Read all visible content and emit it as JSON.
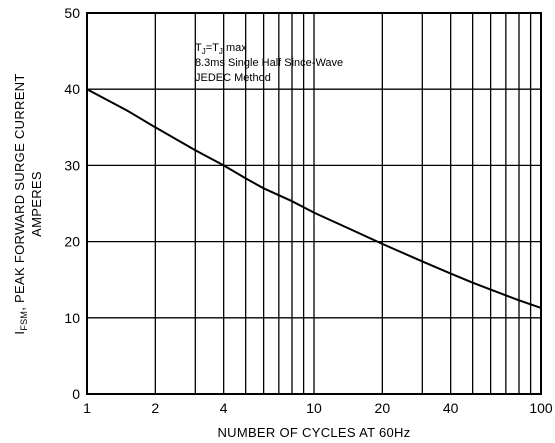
{
  "chart_data": {
    "type": "line",
    "x_scale": "log",
    "y_scale": "linear",
    "xlim": [
      1,
      100
    ],
    "ylim": [
      0,
      50
    ],
    "x_ticks": [
      1,
      2,
      4,
      10,
      20,
      40,
      100
    ],
    "x_tick_labels": [
      "1",
      "2",
      "4",
      "10",
      "20",
      "40",
      "100"
    ],
    "y_ticks": [
      0,
      10,
      20,
      30,
      40,
      50
    ],
    "y_tick_labels": [
      "0",
      "10",
      "20",
      "30",
      "40",
      "50"
    ],
    "grid": true,
    "xlabel": "NUMBER OF CYCLES AT 60Hz",
    "ylabel": {
      "line1_symbol": "I",
      "line1_subscript": "FSM",
      "line1_rest": ", PEAK FORWARD SURGE CURRENT",
      "line2": "AMPERES"
    },
    "annotations": {
      "line1_a": "T",
      "line1_a_sub": "J",
      "line1_b": "=T",
      "line1_b_sub": "J",
      "line1_c": " max",
      "line2": "8.3ms Single Half Since-Wave",
      "line3": "JEDEC Method"
    },
    "series": [
      {
        "x": [
          1,
          1.5,
          2,
          3,
          4,
          5,
          6,
          8,
          10,
          15,
          20,
          30,
          40,
          50,
          60,
          80,
          100
        ],
        "y": [
          40,
          37.2,
          35,
          32,
          30,
          28.3,
          27,
          25.3,
          23.8,
          21.4,
          19.7,
          17.4,
          15.8,
          14.6,
          13.7,
          12.3,
          11.3
        ]
      }
    ]
  }
}
